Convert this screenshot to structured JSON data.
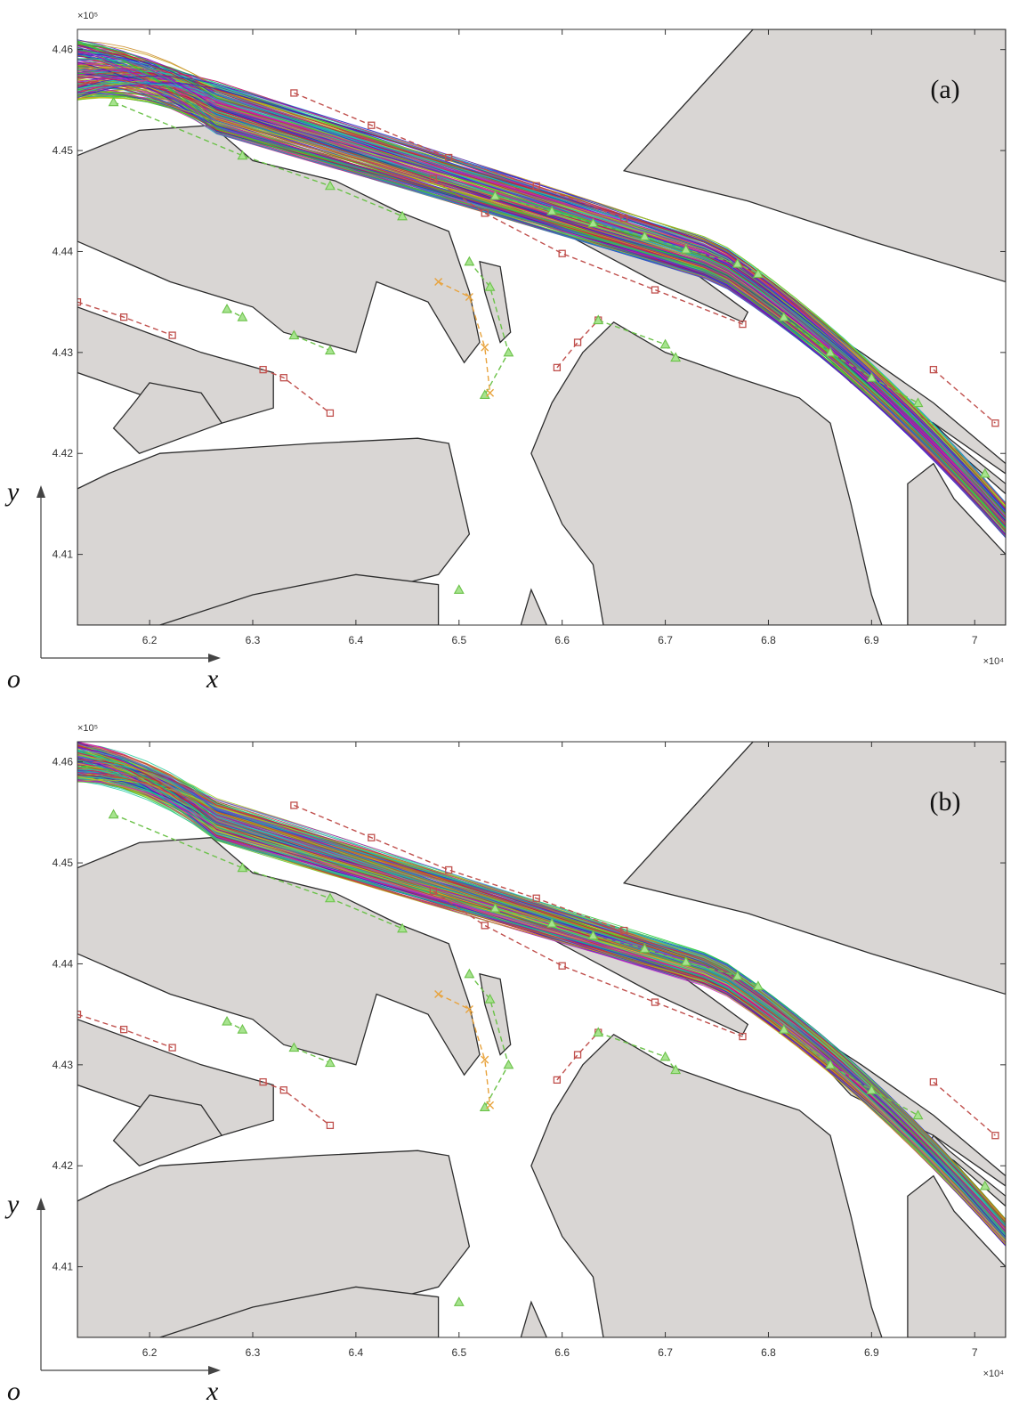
{
  "chart_data": [
    {
      "type": "line",
      "panel_label": "(a)",
      "x_multiplier": "×10⁴",
      "y_multiplier": "×10⁵",
      "xlim": [
        6.13,
        7.03
      ],
      "ylim": [
        4.403,
        4.462
      ],
      "x_ticks": [
        "6.2",
        "6.3",
        "6.4",
        "6.5",
        "6.6",
        "6.7",
        "6.8",
        "6.9",
        "7"
      ],
      "y_ticks": [
        "4.46",
        "4.45",
        "4.44",
        "4.43",
        "4.42",
        "4.41"
      ],
      "axis_letters": {
        "origin": "o",
        "x": "x",
        "y": "y"
      },
      "grid": false,
      "colors": {
        "land": "#d9d6d4",
        "land_edge": "#2d2d2d",
        "red_marker": "#c0504d",
        "green_marker": "#6cc24a",
        "orange_marker": "#e8a33d"
      },
      "trajectory_bundle": {
        "count": 220,
        "entry_y_range": [
          4.455,
          4.461
        ],
        "corridor_half_width": 0.0025
      },
      "series": [
        {
          "type": "dashed",
          "marker": "square",
          "color": "red",
          "points": [
            [
              6.34,
              4.4557
            ],
            [
              6.415,
              4.4525
            ],
            [
              6.49,
              4.4493
            ],
            [
              6.575,
              4.4465
            ],
            [
              6.66,
              4.4433
            ]
          ]
        },
        {
          "type": "dashed",
          "marker": "triangle",
          "color": "green",
          "points": [
            [
              6.165,
              4.4548
            ],
            [
              6.29,
              4.4495
            ],
            [
              6.375,
              4.4465
            ],
            [
              6.445,
              4.4435
            ]
          ]
        },
        {
          "type": "dashed",
          "marker": "square",
          "color": "red",
          "points": [
            [
              6.475,
              4.4472
            ],
            [
              6.525,
              4.4438
            ],
            [
              6.6,
              4.4398
            ],
            [
              6.69,
              4.4362
            ],
            [
              6.775,
              4.4328
            ]
          ]
        },
        {
          "type": "dashed",
          "marker": "triangle",
          "color": "green",
          "points": [
            [
              6.535,
              4.4455
            ],
            [
              6.59,
              4.444
            ],
            [
              6.63,
              4.4428
            ],
            [
              6.68,
              4.4415
            ],
            [
              6.72,
              4.4402
            ],
            [
              6.77,
              4.4388
            ],
            [
              6.79,
              4.4378
            ]
          ]
        },
        {
          "type": "dashed",
          "marker": "square",
          "color": "red",
          "points": [
            [
              6.13,
              4.435
            ],
            [
              6.175,
              4.4335
            ],
            [
              6.222,
              4.4317
            ]
          ]
        },
        {
          "type": "dashed",
          "marker": "triangle",
          "color": "green",
          "points": [
            [
              6.275,
              4.4343
            ],
            [
              6.29,
              4.4335
            ]
          ]
        },
        {
          "type": "dashed",
          "marker": "triangle",
          "color": "green",
          "points": [
            [
              6.34,
              4.4317
            ],
            [
              6.375,
              4.4302
            ]
          ]
        },
        {
          "type": "dashed",
          "marker": "square",
          "color": "red",
          "points": [
            [
              6.31,
              4.4283
            ],
            [
              6.33,
              4.4275
            ],
            [
              6.375,
              4.424
            ]
          ]
        },
        {
          "type": "dashed",
          "marker": "triangle",
          "color": "green",
          "points": [
            [
              6.51,
              4.439
            ],
            [
              6.53,
              4.4365
            ],
            [
              6.548,
              4.43
            ],
            [
              6.525,
              4.4258
            ]
          ]
        },
        {
          "type": "dashed",
          "marker": "x",
          "color": "orange",
          "points": [
            [
              6.48,
              4.437
            ],
            [
              6.51,
              4.4355
            ],
            [
              6.525,
              4.4305
            ],
            [
              6.53,
              4.426
            ]
          ]
        },
        {
          "type": "dashed",
          "marker": "square",
          "color": "red",
          "points": [
            [
              6.595,
              4.4285
            ],
            [
              6.615,
              4.431
            ],
            [
              6.635,
              4.4332
            ]
          ]
        },
        {
          "type": "dashed",
          "marker": "triangle",
          "color": "green",
          "points": [
            [
              6.635,
              4.4332
            ],
            [
              6.7,
              4.4308
            ],
            [
              6.71,
              4.4295
            ]
          ]
        },
        {
          "type": "dashed",
          "marker": "triangle",
          "color": "green",
          "points": [
            [
              6.815,
              4.4335
            ],
            [
              6.86,
              4.43
            ],
            [
              6.9,
              4.4275
            ],
            [
              6.945,
              4.425
            ]
          ]
        },
        {
          "type": "dashed",
          "marker": "square",
          "color": "red",
          "points": [
            [
              6.96,
              4.4283
            ],
            [
              7.02,
              4.423
            ]
          ]
        },
        {
          "type": "dashed",
          "marker": "triangle",
          "color": "green",
          "points": [
            [
              7.01,
              4.418
            ]
          ]
        },
        {
          "type": "dashed",
          "marker": "triangle",
          "color": "green",
          "points": [
            [
              6.5,
              4.4065
            ]
          ]
        }
      ]
    },
    {
      "type": "line",
      "panel_label": "(b)",
      "x_multiplier": "×10⁴",
      "y_multiplier": "×10⁵",
      "xlim": [
        6.13,
        7.03
      ],
      "ylim": [
        4.403,
        4.462
      ],
      "x_ticks": [
        "6.2",
        "6.3",
        "6.4",
        "6.5",
        "6.6",
        "6.7",
        "6.8",
        "6.9",
        "7"
      ],
      "y_ticks": [
        "4.46",
        "4.45",
        "4.44",
        "4.43",
        "4.42",
        "4.41"
      ],
      "axis_letters": {
        "origin": "o",
        "x": "x",
        "y": "y"
      },
      "grid": false,
      "colors": {
        "land": "#d9d6d4",
        "land_edge": "#2d2d2d",
        "red_marker": "#c0504d",
        "green_marker": "#6cc24a",
        "orange_marker": "#e8a33d"
      },
      "trajectory_bundle": {
        "count": 220,
        "entry_y_range": [
          4.458,
          4.462
        ],
        "corridor_half_width": 0.0019
      },
      "series": [
        {
          "type": "dashed",
          "marker": "square",
          "color": "red",
          "points": [
            [
              6.34,
              4.4557
            ],
            [
              6.415,
              4.4525
            ],
            [
              6.49,
              4.4493
            ],
            [
              6.575,
              4.4465
            ],
            [
              6.66,
              4.4433
            ]
          ]
        },
        {
          "type": "dashed",
          "marker": "triangle",
          "color": "green",
          "points": [
            [
              6.165,
              4.4548
            ],
            [
              6.29,
              4.4495
            ],
            [
              6.375,
              4.4465
            ],
            [
              6.445,
              4.4435
            ]
          ]
        },
        {
          "type": "dashed",
          "marker": "square",
          "color": "red",
          "points": [
            [
              6.475,
              4.4472
            ],
            [
              6.525,
              4.4438
            ],
            [
              6.6,
              4.4398
            ],
            [
              6.69,
              4.4362
            ],
            [
              6.775,
              4.4328
            ]
          ]
        },
        {
          "type": "dashed",
          "marker": "triangle",
          "color": "green",
          "points": [
            [
              6.535,
              4.4455
            ],
            [
              6.59,
              4.444
            ],
            [
              6.63,
              4.4428
            ],
            [
              6.68,
              4.4415
            ],
            [
              6.72,
              4.4402
            ],
            [
              6.77,
              4.4388
            ],
            [
              6.79,
              4.4378
            ]
          ]
        },
        {
          "type": "dashed",
          "marker": "square",
          "color": "red",
          "points": [
            [
              6.13,
              4.435
            ],
            [
              6.175,
              4.4335
            ],
            [
              6.222,
              4.4317
            ]
          ]
        },
        {
          "type": "dashed",
          "marker": "triangle",
          "color": "green",
          "points": [
            [
              6.275,
              4.4343
            ],
            [
              6.29,
              4.4335
            ]
          ]
        },
        {
          "type": "dashed",
          "marker": "triangle",
          "color": "green",
          "points": [
            [
              6.34,
              4.4317
            ],
            [
              6.375,
              4.4302
            ]
          ]
        },
        {
          "type": "dashed",
          "marker": "square",
          "color": "red",
          "points": [
            [
              6.31,
              4.4283
            ],
            [
              6.33,
              4.4275
            ],
            [
              6.375,
              4.424
            ]
          ]
        },
        {
          "type": "dashed",
          "marker": "triangle",
          "color": "green",
          "points": [
            [
              6.51,
              4.439
            ],
            [
              6.53,
              4.4365
            ],
            [
              6.548,
              4.43
            ],
            [
              6.525,
              4.4258
            ]
          ]
        },
        {
          "type": "dashed",
          "marker": "x",
          "color": "orange",
          "points": [
            [
              6.48,
              4.437
            ],
            [
              6.51,
              4.4355
            ],
            [
              6.525,
              4.4305
            ],
            [
              6.53,
              4.426
            ]
          ]
        },
        {
          "type": "dashed",
          "marker": "square",
          "color": "red",
          "points": [
            [
              6.595,
              4.4285
            ],
            [
              6.615,
              4.431
            ],
            [
              6.635,
              4.4332
            ]
          ]
        },
        {
          "type": "dashed",
          "marker": "triangle",
          "color": "green",
          "points": [
            [
              6.635,
              4.4332
            ],
            [
              6.7,
              4.4308
            ],
            [
              6.71,
              4.4295
            ]
          ]
        },
        {
          "type": "dashed",
          "marker": "triangle",
          "color": "green",
          "points": [
            [
              6.815,
              4.4335
            ],
            [
              6.86,
              4.43
            ],
            [
              6.9,
              4.4275
            ],
            [
              6.945,
              4.425
            ]
          ]
        },
        {
          "type": "dashed",
          "marker": "square",
          "color": "red",
          "points": [
            [
              6.96,
              4.4283
            ],
            [
              7.02,
              4.423
            ]
          ]
        },
        {
          "type": "dashed",
          "marker": "triangle",
          "color": "green",
          "points": [
            [
              7.01,
              4.418
            ]
          ]
        },
        {
          "type": "dashed",
          "marker": "triangle",
          "color": "green",
          "points": [
            [
              6.5,
              4.4065
            ]
          ]
        }
      ]
    }
  ]
}
